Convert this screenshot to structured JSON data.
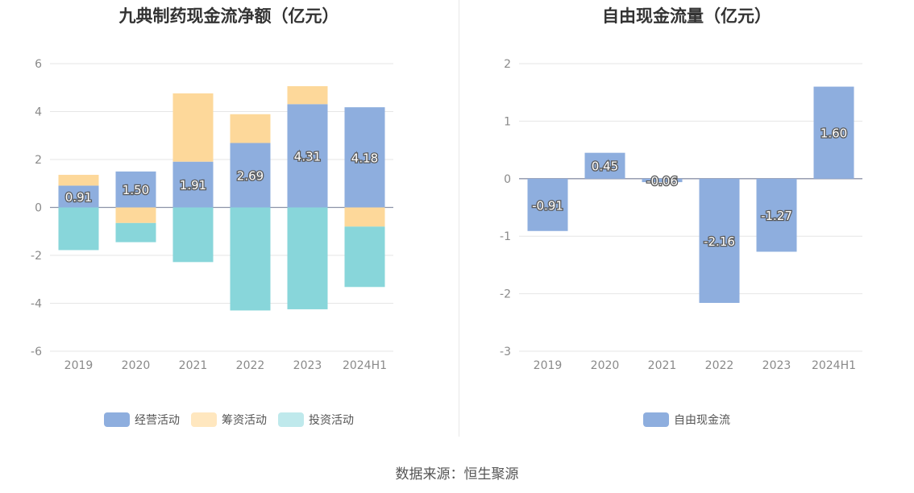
{
  "chart_data": [
    {
      "type": "bar",
      "stacked": true,
      "title": "九典制药现金流净额（亿元）",
      "categories": [
        "2019",
        "2020",
        "2021",
        "2022",
        "2023",
        "2024H1"
      ],
      "series": [
        {
          "name": "经营活动",
          "color": "#8eaede",
          "values": [
            0.91,
            1.5,
            1.91,
            2.69,
            4.31,
            4.18
          ]
        },
        {
          "name": "筹资活动",
          "color": "#fdd89a",
          "values": [
            0.45,
            -0.65,
            2.85,
            1.2,
            0.75,
            -0.8
          ]
        },
        {
          "name": "投资活动",
          "color": "#88d6da",
          "values": [
            -1.78,
            -0.8,
            -2.28,
            -4.3,
            -4.25,
            -2.52
          ]
        }
      ],
      "data_labels_series": "经营活动",
      "data_labels": [
        "0.91",
        "1.50",
        "1.91",
        "2.69",
        "4.31",
        "4.18"
      ],
      "ylim": [
        -6,
        6
      ],
      "yticks": [
        -6,
        -4,
        -2,
        0,
        2,
        4,
        6
      ],
      "ytick_labels": [
        "-6",
        "-4",
        "-2",
        "0",
        "2",
        "4",
        "6"
      ],
      "legend": [
        {
          "label": "经营活动",
          "color": "#8eaede"
        },
        {
          "label": "筹资活动",
          "color": "#ffe7bf"
        },
        {
          "label": "投资活动",
          "color": "#bfe9ec"
        }
      ],
      "legend_position": "bottom",
      "grid": true
    },
    {
      "type": "bar",
      "title": "自由现金流量（亿元）",
      "categories": [
        "2019",
        "2020",
        "2021",
        "2022",
        "2023",
        "2024H1"
      ],
      "series": [
        {
          "name": "自由现金流",
          "color": "#8eaede",
          "values": [
            -0.91,
            0.45,
            -0.06,
            -2.16,
            -1.27,
            1.6
          ]
        }
      ],
      "data_labels": [
        "-0.91",
        "0.45",
        "-0.06",
        "-2.16",
        "-1.27",
        "1.60"
      ],
      "ylim": [
        -3,
        2
      ],
      "yticks": [
        -3,
        -2,
        -1,
        0,
        1,
        2
      ],
      "ytick_labels": [
        "-3",
        "-2",
        "-1",
        "0",
        "1",
        "2"
      ],
      "legend": [
        {
          "label": "自由现金流",
          "color": "#8eaede"
        }
      ],
      "legend_position": "bottom",
      "grid": true
    }
  ],
  "footer": {
    "source": "数据来源：恒生聚源"
  }
}
